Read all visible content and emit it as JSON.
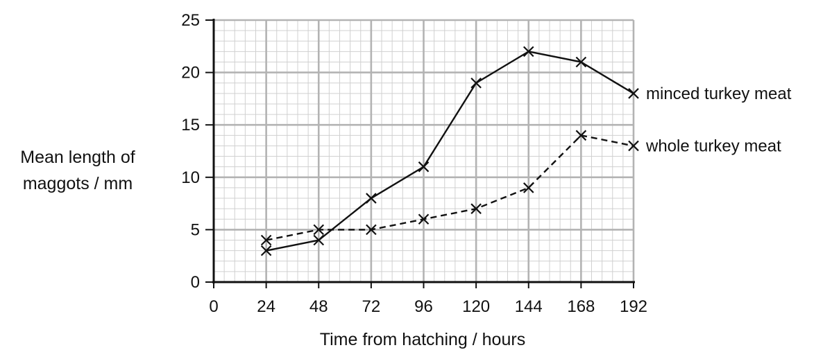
{
  "chart_data": {
    "type": "line",
    "xlabel": "Time from hatching / hours",
    "ylabel": [
      "Mean length of",
      "maggots / mm"
    ],
    "xlim": [
      0,
      192
    ],
    "ylim": [
      0,
      25
    ],
    "x_ticks": [
      0,
      24,
      48,
      72,
      96,
      120,
      144,
      168,
      192
    ],
    "y_ticks": [
      0,
      5,
      10,
      15,
      20,
      25
    ],
    "grid": true,
    "series": [
      {
        "name": "minced turkey meat",
        "line_style": "solid",
        "marker": "x",
        "x": [
          24,
          48,
          72,
          96,
          120,
          144,
          168,
          192
        ],
        "y": [
          3,
          4,
          8,
          11,
          19,
          22,
          21,
          18
        ]
      },
      {
        "name": "whole turkey meat",
        "line_style": "dashed",
        "marker": "x",
        "x": [
          24,
          48,
          72,
          96,
          120,
          144,
          168,
          192
        ],
        "y": [
          4,
          5,
          5,
          6,
          7,
          9,
          14,
          13
        ]
      }
    ],
    "colors": {
      "line": "#111111",
      "grid_major": "#b3b3b3",
      "grid_minor": "#d0d0d0"
    }
  }
}
